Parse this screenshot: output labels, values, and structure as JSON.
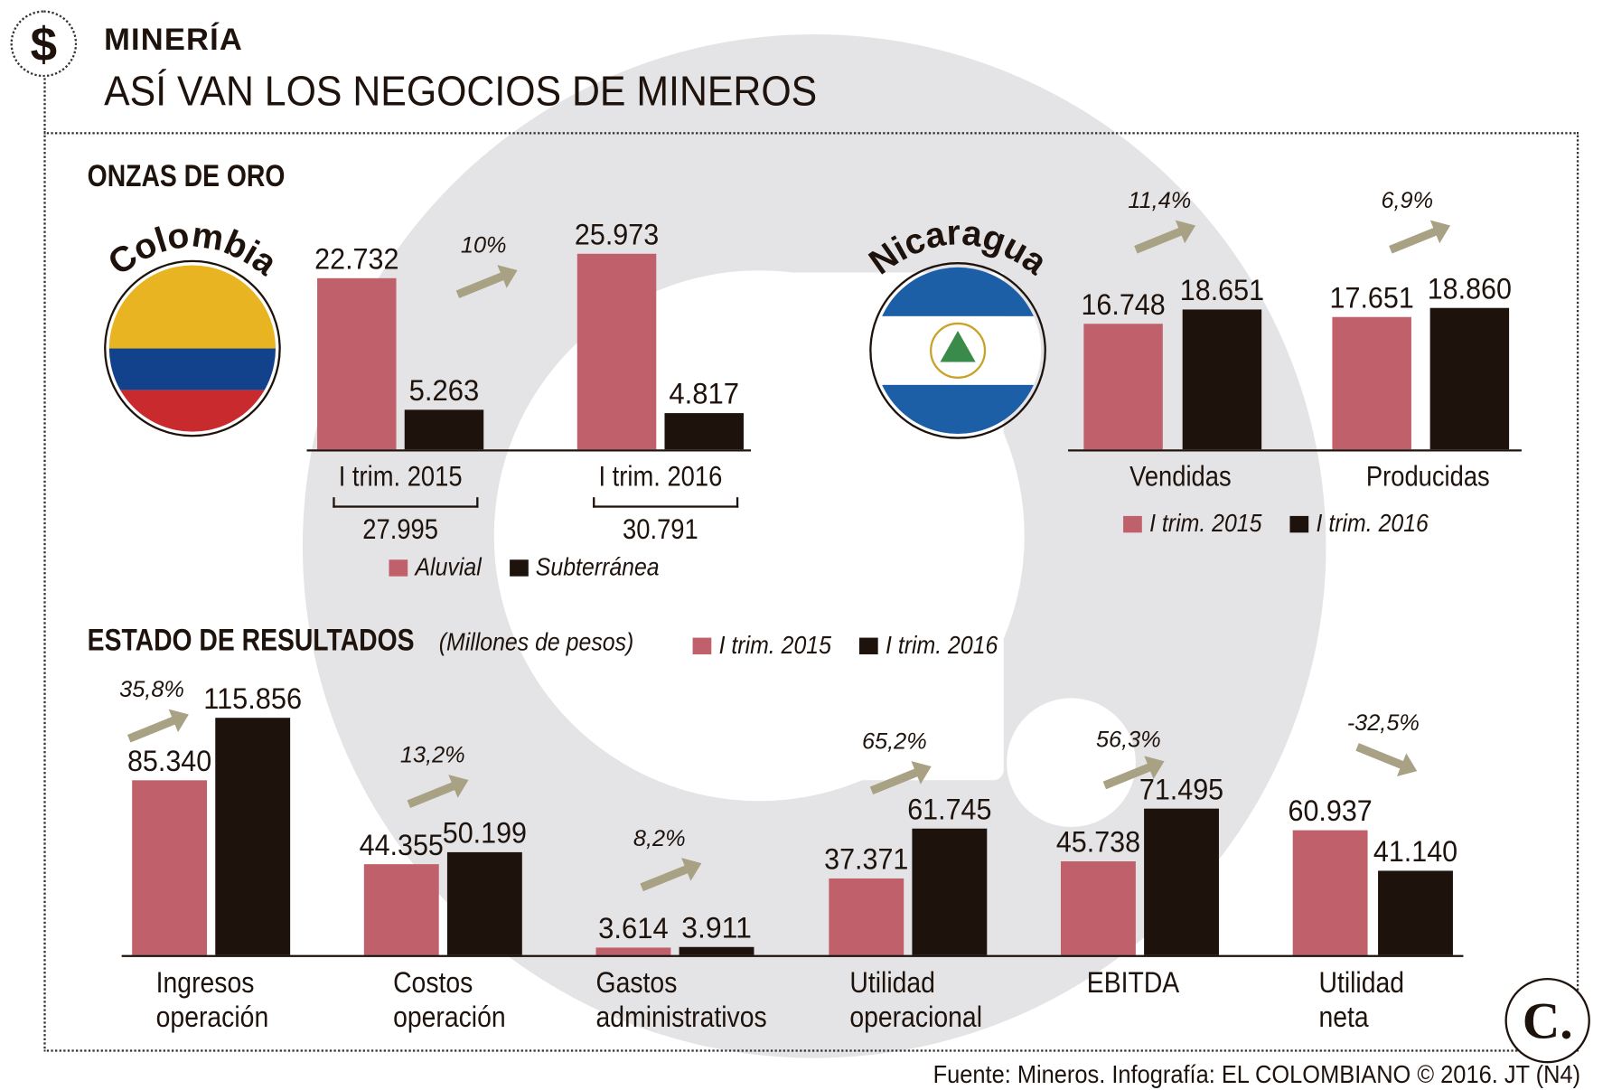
{
  "header": {
    "kicker": "MINERÍA",
    "title": "ASÍ VAN LOS NEGOCIOS DE MINEROS",
    "icon": "dollar-icon"
  },
  "colors": {
    "aluvial_2015": "#c0606a",
    "dark_2016": "#1e120c",
    "arrow": "#a9a184",
    "background_logo": "#e4e4e6"
  },
  "gold": {
    "section_title": "ONZAS DE ORO",
    "colombia": {
      "label": "Colombia",
      "totals": [
        "27.995",
        "30.791"
      ],
      "legend": [
        "Aluvial",
        "Subterránea"
      ]
    },
    "nicaragua": {
      "label": "Nicaragua",
      "legend": [
        "I trim.  2015",
        "I trim. 2016"
      ]
    }
  },
  "results": {
    "section_title": "ESTADO DE RESULTADOS",
    "unit": "(Millones de pesos)",
    "legend": [
      "I trim. 2015",
      "I trim. 2016"
    ]
  },
  "chart_data": [
    {
      "type": "bar",
      "name": "colombia",
      "categories": [
        "I trim. 2015",
        "I trim. 2016"
      ],
      "series": [
        {
          "name": "Aluvial",
          "values": [
            22732,
            25973
          ],
          "labels": [
            "22.732",
            "25.973"
          ]
        },
        {
          "name": "Subterránea",
          "values": [
            5263,
            4817
          ],
          "labels": [
            "5.263",
            "4.817"
          ]
        }
      ],
      "annotations": [
        "10%"
      ]
    },
    {
      "type": "bar",
      "name": "nicaragua",
      "categories": [
        "Vendidas",
        "Producidas"
      ],
      "series": [
        {
          "name": "I trim.  2015",
          "values": [
            16748,
            17651
          ],
          "labels": [
            "16.748",
            "17.651"
          ]
        },
        {
          "name": "I trim. 2016",
          "values": [
            18651,
            18860
          ],
          "labels": [
            "18.651",
            "18.860"
          ]
        }
      ],
      "annotations": [
        "11,4%",
        "6,9%"
      ]
    },
    {
      "type": "bar",
      "name": "estado-resultados",
      "categories": [
        "Ingresos operación",
        "Costos operación",
        "Gastos administrativos",
        "Utilidad operacional",
        "EBITDA",
        "Utilidad neta"
      ],
      "series": [
        {
          "name": "I trim. 2015",
          "values": [
            85340,
            44355,
            3614,
            37371,
            45738,
            60937
          ],
          "labels": [
            "85.340",
            "44.355",
            "3.614",
            "37.371",
            "45.738",
            "60.937"
          ]
        },
        {
          "name": "I trim. 2016",
          "values": [
            115856,
            50199,
            3911,
            61745,
            71495,
            41140
          ],
          "labels": [
            "115.856",
            "50.199",
            "3.911",
            "61.745",
            "71.495",
            "41.140"
          ]
        }
      ],
      "annotations": [
        "35,8%",
        "13,2%",
        "8,2%",
        "65,2%",
        "56,3%",
        "-32,5%"
      ]
    }
  ],
  "footer": {
    "source": "Fuente: Mineros. Infografía: EL COLOMBIANO © 2016. JT (N4)",
    "logo": "C."
  }
}
